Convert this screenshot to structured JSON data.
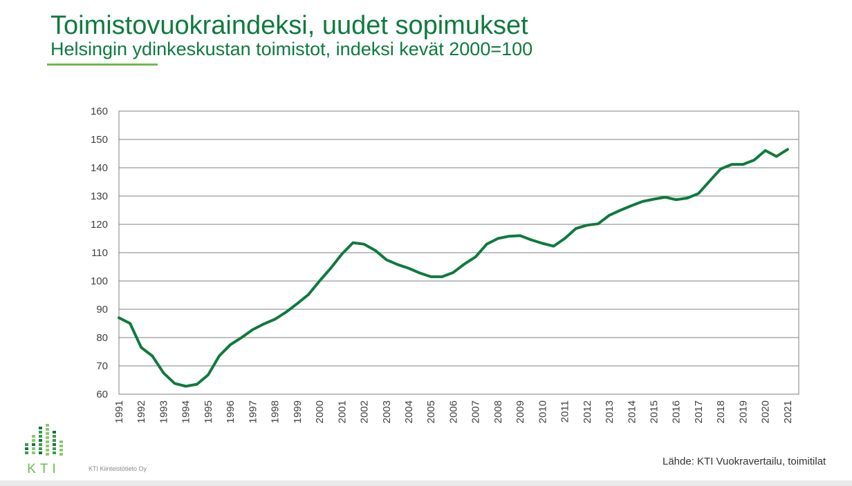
{
  "slide": {
    "title": "Toimistovuokraindeksi, uudet sopimukset",
    "subtitle": "Helsingin ydinkeskustan toimistot, indeksi kevät 2000=100",
    "company": "KTI Kiinteistötieto Oy",
    "source": "Lähde: KTI Vuokravertailu, toimitilat",
    "logo_text": "KTI"
  },
  "colors": {
    "accent": "#0e7a3e",
    "title_rule": "#6bbb4a",
    "grid": "#7f7f7f"
  },
  "chart_data": {
    "type": "line",
    "title": "",
    "xlabel": "",
    "ylabel": "",
    "ylim": [
      60,
      160
    ],
    "yticks": [
      60,
      70,
      80,
      90,
      100,
      110,
      120,
      130,
      140,
      150,
      160
    ],
    "xlim": [
      1991,
      2021.5
    ],
    "xticks": [
      "1991",
      "1992",
      "1993",
      "1994",
      "1995",
      "1996",
      "1997",
      "1998",
      "1999",
      "2000",
      "2001",
      "2002",
      "2003",
      "2004",
      "2005",
      "2006",
      "2007",
      "2008",
      "2009",
      "2010",
      "2011",
      "2012",
      "2013",
      "2014",
      "2015",
      "2016",
      "2017",
      "2018",
      "2019",
      "2020",
      "2021"
    ],
    "grid": true,
    "legend": "none",
    "series": [
      {
        "color": "#0e7a3e",
        "x": [
          1991.0,
          1991.5,
          1992.0,
          1992.5,
          1993.0,
          1993.5,
          1994.0,
          1994.5,
          1995.0,
          1995.5,
          1996.0,
          1996.5,
          1997.0,
          1997.5,
          1998.0,
          1998.5,
          1999.0,
          1999.5,
          2000.0,
          2000.5,
          2001.0,
          2001.5,
          2002.0,
          2002.5,
          2003.0,
          2003.5,
          2004.0,
          2004.5,
          2005.0,
          2005.5,
          2006.0,
          2006.5,
          2007.0,
          2007.5,
          2008.0,
          2008.5,
          2009.0,
          2009.5,
          2010.0,
          2010.5,
          2011.0,
          2011.5,
          2012.0,
          2012.5,
          2013.0,
          2013.5,
          2014.0,
          2014.5,
          2015.0,
          2015.5,
          2016.0,
          2016.5,
          2017.0,
          2017.5,
          2018.0,
          2018.5,
          2019.0,
          2019.5,
          2020.0,
          2020.5,
          2021.0
        ],
        "y": [
          87,
          85,
          76.5,
          73.5,
          67.5,
          63.8,
          62.8,
          63.5,
          66.8,
          73.5,
          77.5,
          80,
          82.8,
          84.8,
          86.5,
          89,
          92,
          95.2,
          100,
          104.5,
          109.5,
          113.5,
          113,
          110.8,
          107.5,
          105.8,
          104.5,
          102.8,
          101.5,
          101.5,
          103,
          106,
          108.5,
          113,
          115,
          115.8,
          116,
          114.5,
          113.3,
          112.3,
          115,
          118.5,
          119.7,
          120.2,
          123.2,
          125,
          126.6,
          128.1,
          128.9,
          129.6,
          128.7,
          129.3,
          130.9,
          135.3,
          139.6,
          141.2,
          141.2,
          142.7,
          146.1,
          144,
          146.5
        ]
      }
    ]
  }
}
